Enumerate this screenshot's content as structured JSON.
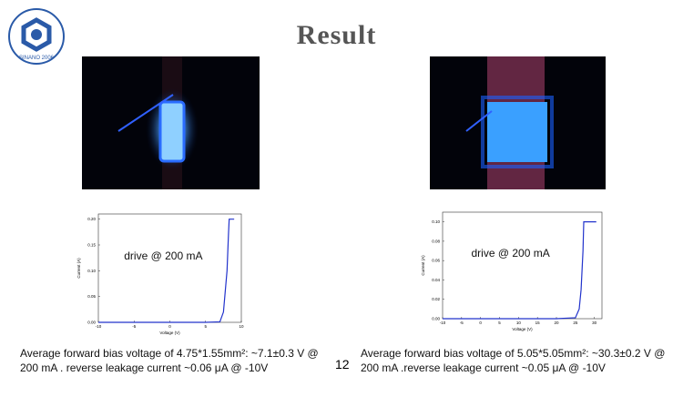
{
  "header": {
    "title": "Result",
    "logo_text": "SINANO 2006"
  },
  "chart_data": [
    {
      "type": "line",
      "annotation": "drive @ 200 mA",
      "x_label": "Voltage (V)",
      "y_label": "Current (A)",
      "x": [
        -10,
        -5,
        0,
        5,
        7,
        7.5,
        8,
        8.2,
        8.3,
        9
      ],
      "series": [
        {
          "color": "#2233cc",
          "values": [
            0,
            0,
            0,
            0,
            0.001,
            0.02,
            0.1,
            0.17,
            0.2,
            0.2
          ]
        }
      ],
      "xlim": [
        -10,
        10
      ],
      "xticks": [
        -10,
        -5,
        0,
        5,
        10
      ],
      "ylim": [
        0,
        0.21
      ],
      "yticks": [
        {
          "value": 0,
          "label": "0.00"
        },
        {
          "value": 0.05,
          "label": "0.05"
        },
        {
          "value": 0.1,
          "label": "0.10"
        },
        {
          "value": 0.15,
          "label": "0.15"
        },
        {
          "value": 0.2,
          "label": "0.20"
        }
      ]
    },
    {
      "type": "line",
      "annotation": "drive @ 200 mA",
      "x_label": "Voltage (V)",
      "y_label": "Current (A)",
      "x": [
        -10,
        0,
        20,
        25,
        26,
        26.5,
        27,
        27.2,
        30.5
      ],
      "series": [
        {
          "color": "#2233cc",
          "values": [
            0,
            0,
            0,
            0.001,
            0.01,
            0.03,
            0.07,
            0.1,
            0.1
          ]
        }
      ],
      "xlim": [
        -10,
        32
      ],
      "xticks": [
        -10,
        -5,
        0,
        5,
        10,
        15,
        20,
        25,
        30
      ],
      "ylim": [
        0,
        0.11
      ],
      "yticks": [
        {
          "value": 0,
          "label": "0.00"
        },
        {
          "value": 0.02,
          "label": "0.02"
        },
        {
          "value": 0.04,
          "label": "0.04"
        },
        {
          "value": 0.06,
          "label": "0.06"
        },
        {
          "value": 0.08,
          "label": "0.08"
        },
        {
          "value": 0.1,
          "label": "0.10"
        }
      ]
    }
  ],
  "captions": [
    "Average forward bias voltage of 4.75*1.55mm²: ~7.1±0.3 V @ 200 mA . reverse leakage current ~0.06 μA @ -10V",
    "Average forward bias voltage of 5.05*5.05mm²: ~30.3±0.2 V @ 200 mA .reverse leakage current ~0.05 μA @ -10V"
  ],
  "page_number": "12"
}
